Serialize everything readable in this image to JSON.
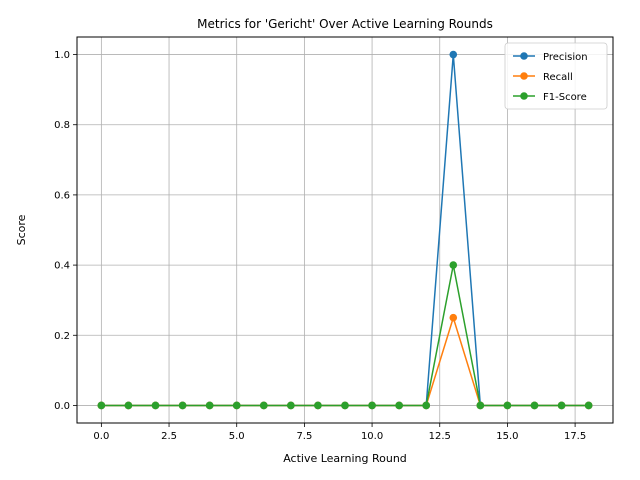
{
  "chart_data": {
    "type": "line",
    "title": "Metrics for 'Gericht' Over Active Learning Rounds",
    "xlabel": "Active Learning Round",
    "ylabel": "Score",
    "x": [
      0,
      1,
      2,
      3,
      4,
      5,
      6,
      7,
      8,
      9,
      10,
      11,
      12,
      13,
      14,
      15,
      16,
      17,
      18
    ],
    "xlim": [
      -0.9,
      18.9
    ],
    "ylim": [
      -0.05,
      1.05
    ],
    "xticks": [
      0.0,
      2.5,
      5.0,
      7.5,
      10.0,
      12.5,
      15.0,
      17.5
    ],
    "xtick_labels": [
      "0.0",
      "2.5",
      "5.0",
      "7.5",
      "10.0",
      "12.5",
      "15.0",
      "17.5"
    ],
    "yticks": [
      0.0,
      0.2,
      0.4,
      0.6,
      0.8,
      1.0
    ],
    "ytick_labels": [
      "0.0",
      "0.2",
      "0.4",
      "0.6",
      "0.8",
      "1.0"
    ],
    "grid": true,
    "legend_position": "top-right",
    "series": [
      {
        "name": "Precision",
        "color": "#1f77b4",
        "values": [
          0,
          0,
          0,
          0,
          0,
          0,
          0,
          0,
          0,
          0,
          0,
          0,
          0,
          1.0,
          0,
          0,
          0,
          0,
          0
        ]
      },
      {
        "name": "Recall",
        "color": "#ff7f0e",
        "values": [
          0,
          0,
          0,
          0,
          0,
          0,
          0,
          0,
          0,
          0,
          0,
          0,
          0,
          0.25,
          0,
          0,
          0,
          0,
          0
        ]
      },
      {
        "name": "F1-Score",
        "color": "#2ca02c",
        "values": [
          0,
          0,
          0,
          0,
          0,
          0,
          0,
          0,
          0,
          0,
          0,
          0,
          0,
          0.4,
          0,
          0,
          0,
          0,
          0
        ]
      }
    ]
  }
}
